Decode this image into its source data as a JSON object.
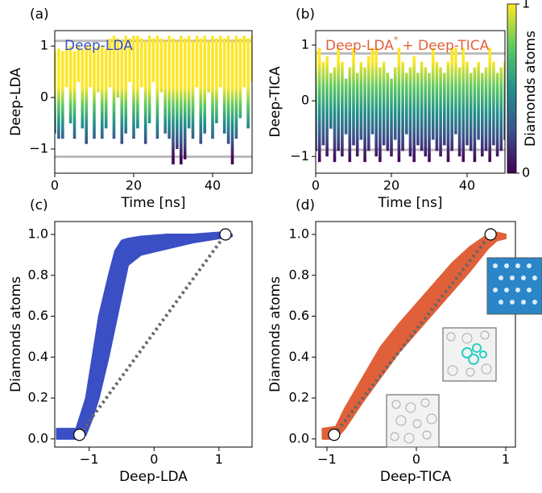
{
  "chart_data": [
    {
      "type": "strip",
      "panel": "(a)",
      "annotation": [
        "Deep-LDA"
      ],
      "annotation_color": "#3a4fc4",
      "xlabel": "Time [ns]",
      "ylabel": "Deep-LDA",
      "xlim": [
        0,
        50
      ],
      "ylim": [
        -1.47,
        1.3
      ],
      "xticks": [
        0,
        20,
        40
      ],
      "yticks": [
        {
          "value": -1,
          "label": "−1"
        },
        0,
        1
      ],
      "hlines": [
        1.1,
        -1.15
      ],
      "color_range": [
        -1.2,
        0.2
      ],
      "x": [
        0,
        1,
        2,
        3,
        4,
        5,
        6,
        7,
        8,
        9,
        10,
        11,
        12,
        13,
        14,
        15,
        16,
        17,
        18,
        19,
        20,
        21,
        22,
        23,
        24,
        25,
        26,
        27,
        28,
        29,
        30,
        31,
        32,
        33,
        34,
        35,
        36,
        37,
        38,
        39,
        40,
        41,
        42,
        43,
        44,
        45,
        46,
        47,
        48,
        49,
        50
      ],
      "lower": [
        -0.7,
        -0.8,
        -0.8,
        0.2,
        -0.5,
        -0.8,
        0.3,
        -0.6,
        -0.9,
        0.2,
        -0.8,
        0.1,
        -0.8,
        -0.6,
        0.2,
        -0.8,
        0.0,
        -0.9,
        -0.7,
        0.3,
        -0.8,
        -0.6,
        0.2,
        -0.9,
        -0.5,
        0.3,
        -0.8,
        0.1,
        -0.7,
        -0.8,
        -1.3,
        -1.0,
        -1.3,
        -1.2,
        -0.6,
        -0.8,
        0.2,
        -0.9,
        -0.7,
        0.1,
        -0.8,
        -0.5,
        0.2,
        -0.7,
        -0.9,
        -1.3,
        -0.8,
        -0.4,
        0.2,
        -0.6,
        0.3
      ],
      "upper": [
        0.9,
        0.95,
        0.9,
        0.95,
        1.0,
        0.9,
        1.0,
        0.95,
        1.0,
        1.0,
        0.95,
        1.0,
        1.0,
        0.95,
        1.15,
        1.2,
        1.15,
        1.1,
        1.2,
        1.15,
        1.2,
        1.2,
        1.15,
        1.1,
        1.2,
        1.15,
        1.2,
        1.15,
        1.1,
        1.2,
        1.15,
        1.1,
        1.2,
        1.15,
        1.2,
        1.1,
        1.2,
        1.15,
        1.2,
        1.1,
        1.2,
        1.15,
        1.2,
        1.15,
        1.2,
        1.1,
        1.2,
        1.15,
        1.2,
        1.15,
        1.2
      ]
    },
    {
      "type": "strip",
      "panel": "(b)",
      "annotation": [
        "Deep-LDA",
        "*",
        "+ Deep-TICA"
      ],
      "annotation_color": "#e0603a",
      "xlabel": "Time [ns]",
      "ylabel": "Deep-TICA",
      "xlim": [
        0,
        50
      ],
      "ylim": [
        -1.3,
        1.26
      ],
      "xticks": [
        0,
        20,
        40
      ],
      "yticks": [
        {
          "value": -1,
          "label": "−1"
        },
        0,
        1
      ],
      "hlines": [
        0.85,
        -0.88
      ],
      "color_range": [
        -1.1,
        0.7
      ],
      "colorbar": {
        "label": "Diamonds atoms",
        "lim": [
          0,
          1
        ],
        "ticks": [
          0,
          1
        ],
        "colormap": [
          "#440154",
          "#3b528b",
          "#21918c",
          "#5ec962",
          "#fde725"
        ]
      },
      "x": [
        0,
        1,
        2,
        3,
        4,
        5,
        6,
        7,
        8,
        9,
        10,
        11,
        12,
        13,
        14,
        15,
        16,
        17,
        18,
        19,
        20,
        21,
        22,
        23,
        24,
        25,
        26,
        27,
        28,
        29,
        30,
        31,
        32,
        33,
        34,
        35,
        36,
        37,
        38,
        39,
        40,
        41,
        42,
        43,
        44,
        45,
        46,
        47,
        48,
        49,
        50
      ],
      "lower": [
        -0.9,
        -1.1,
        -0.8,
        -1.0,
        -0.5,
        -1.1,
        -0.9,
        -1.0,
        -0.6,
        -1.1,
        -0.8,
        -1.0,
        -0.7,
        -1.1,
        -0.9,
        -0.6,
        -1.0,
        -1.1,
        -0.8,
        -0.9,
        -1.0,
        -0.7,
        -1.1,
        -0.9,
        -0.6,
        -1.0,
        -1.1,
        -0.8,
        -0.9,
        -1.0,
        -1.1,
        -0.7,
        -0.9,
        -1.0,
        -0.8,
        -1.1,
        -0.9,
        -0.6,
        -1.0,
        -1.1,
        -0.8,
        -0.9,
        -1.1,
        -0.7,
        -1.0,
        -0.9,
        -1.1,
        -0.8,
        -1.0,
        -0.9,
        -0.7
      ],
      "upper": [
        0.9,
        0.95,
        0.7,
        0.8,
        0.5,
        0.6,
        0.95,
        0.7,
        0.4,
        0.6,
        0.95,
        0.5,
        0.7,
        0.6,
        0.8,
        0.95,
        0.95,
        0.6,
        0.7,
        0.5,
        0.4,
        0.6,
        0.95,
        0.7,
        0.5,
        0.6,
        0.8,
        0.5,
        0.7,
        0.6,
        0.5,
        0.95,
        0.7,
        0.6,
        0.5,
        0.7,
        0.95,
        0.95,
        0.6,
        0.95,
        0.7,
        0.5,
        0.6,
        0.7,
        0.5,
        0.6,
        0.95,
        0.7,
        0.5,
        0.6,
        0.7
      ]
    },
    {
      "type": "band",
      "panel": "(c)",
      "color": "#3a4fc4",
      "xlabel": "Deep-LDA",
      "ylabel": "Diamonds atoms",
      "xlim": [
        -1.53,
        1.51
      ],
      "ylim": [
        -0.04,
        1.063
      ],
      "xticks": [
        {
          "value": -1,
          "label": "−1"
        },
        0,
        1
      ],
      "yticks": [
        {
          "value": 0,
          "label": "0.0"
        },
        {
          "value": 0.2,
          "label": "0.2"
        },
        0.4,
        0.6,
        0.8,
        {
          "value": 1,
          "label": "1.0"
        }
      ],
      "x": [
        -1.5,
        -1.2,
        -1.05,
        -0.95,
        -0.85,
        -0.7,
        -0.6,
        -0.5,
        -0.4,
        -0.2,
        0.2,
        0.6,
        1.0,
        1.2
      ],
      "lower": [
        0.0,
        0.0,
        0.02,
        0.1,
        0.2,
        0.4,
        0.55,
        0.7,
        0.85,
        0.9,
        0.93,
        0.96,
        0.98,
        0.99
      ],
      "upper": [
        0.05,
        0.05,
        0.2,
        0.4,
        0.6,
        0.8,
        0.92,
        0.97,
        0.98,
        0.99,
        1.0,
        1.0,
        1.01,
        1.0
      ],
      "markers": {
        "x": [
          -1.15,
          1.1
        ],
        "y": [
          0.02,
          1.0
        ]
      }
    },
    {
      "type": "band",
      "panel": "(d)",
      "color": "#e0603a",
      "xlabel": "Deep-TICA",
      "ylabel": "Diamonds atoms",
      "xlim": [
        -1.126,
        1.108
      ],
      "ylim": [
        -0.04,
        1.063
      ],
      "xticks": [
        {
          "value": -1,
          "label": "−1"
        },
        0,
        1
      ],
      "yticks": [
        {
          "value": 0,
          "label": "0.0"
        },
        0.2,
        0.4,
        0.6,
        0.8,
        {
          "value": 1,
          "label": "1.0"
        }
      ],
      "x": [
        -1.05,
        -0.9,
        -0.8,
        -0.6,
        -0.4,
        -0.2,
        0,
        0.2,
        0.4,
        0.6,
        0.8,
        0.9,
        1.0
      ],
      "lower": [
        0.0,
        0.0,
        0.05,
        0.18,
        0.3,
        0.42,
        0.52,
        0.62,
        0.72,
        0.82,
        0.93,
        0.97,
        0.98
      ],
      "upper": [
        0.05,
        0.06,
        0.15,
        0.3,
        0.45,
        0.56,
        0.66,
        0.76,
        0.86,
        0.94,
        1.0,
        1.01,
        1.0
      ],
      "markers": {
        "x": [
          -0.92,
          0.83
        ],
        "y": [
          0.02,
          1.0
        ]
      }
    }
  ]
}
